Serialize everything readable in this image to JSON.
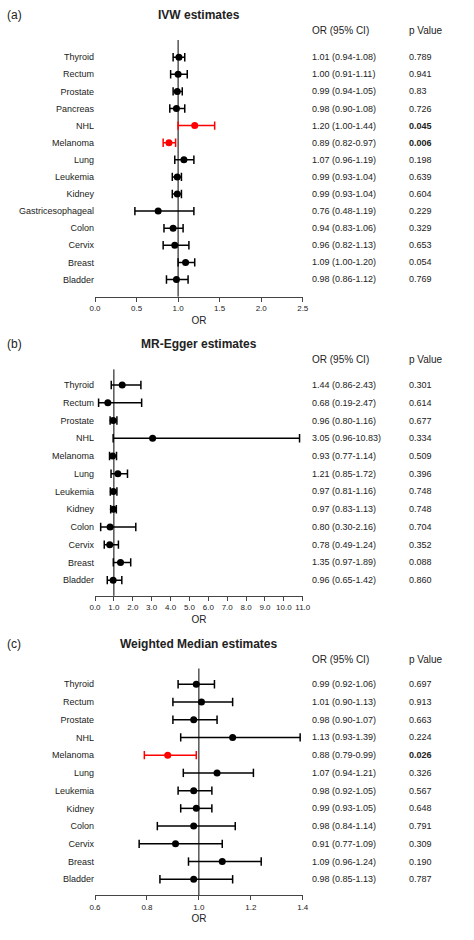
{
  "chart_data": [
    {
      "type": "forest",
      "label": "(a)",
      "title": "IVW estimates",
      "x_label": "OR",
      "categories": [
        "Thyroid",
        "Rectum",
        "Prostate",
        "Pancreas",
        "NHL",
        "Melanoma",
        "Lung",
        "Leukemia",
        "Kidney",
        "Gastricesophageal",
        "Colon",
        "Cervix",
        "Breast",
        "Bladder"
      ],
      "values": [
        1.01,
        1.0,
        0.99,
        0.98,
        1.2,
        0.89,
        1.07,
        0.99,
        0.99,
        0.76,
        0.94,
        0.96,
        1.09,
        0.98
      ],
      "ci_low": [
        0.94,
        0.91,
        0.94,
        0.9,
        1.0,
        0.82,
        0.96,
        0.93,
        0.93,
        0.48,
        0.83,
        0.82,
        1.0,
        0.86
      ],
      "ci_high": [
        1.08,
        1.11,
        1.05,
        1.08,
        1.44,
        0.97,
        1.19,
        1.04,
        1.04,
        1.19,
        1.06,
        1.13,
        1.2,
        1.12
      ],
      "value_labels": [
        "1.01 (0.94-1.08)",
        "1.00 (0.91-1.11)",
        "0.99 (0.94-1.05)",
        "0.98 (0.90-1.08)",
        "1.20 (1.00-1.44)",
        "0.89 (0.82-0.97)",
        "1.07 (0.96-1.19)",
        "0.99 (0.93-1.04)",
        "0.99 (0.93-1.04)",
        "0.76 (0.48-1.19)",
        "0.94 (0.83-1.06)",
        "0.96 (0.82-1.13)",
        "1.09 (1.00-1.20)",
        "0.98 (0.86-1.12)"
      ],
      "p_values": [
        "0.789",
        "0.941",
        "0.83",
        "0.726",
        "0.045",
        "0.006",
        "0.198",
        "0.639",
        "0.604",
        "0.229",
        "0.329",
        "0.653",
        "0.054",
        "0.769"
      ],
      "columns": [
        "OR (95% CI)",
        "p Value"
      ],
      "color": "black",
      "colors": [
        "black",
        "black",
        "black",
        "black",
        "red",
        "red",
        "black",
        "black",
        "black",
        "black",
        "black",
        "black",
        "black",
        "black"
      ],
      "reference_line": 1.0,
      "xlim": [
        0.0,
        2.5
      ],
      "xticks": [
        {
          "value": 0,
          "label": "0.0"
        },
        0.5,
        {
          "value": 1,
          "label": "1.0"
        },
        1.5,
        {
          "value": 2,
          "label": "2.0"
        },
        2.5
      ],
      "grid": false
    },
    {
      "type": "forest",
      "label": "(b)",
      "title": "MR-Egger estimates",
      "x_label": "OR",
      "categories": [
        "Thyroid",
        "Rectum",
        "Prostate",
        "NHL",
        "Melanoma",
        "Lung",
        "Leukemia",
        "Kidney",
        "Colon",
        "Cervix",
        "Breast",
        "Bladder"
      ],
      "values": [
        1.44,
        0.68,
        0.96,
        3.05,
        0.93,
        1.21,
        0.97,
        0.97,
        0.8,
        0.78,
        1.35,
        0.96
      ],
      "ci_low": [
        0.86,
        0.19,
        0.8,
        0.96,
        0.77,
        0.85,
        0.81,
        0.83,
        0.3,
        0.49,
        0.97,
        0.65
      ],
      "ci_high": [
        2.43,
        2.47,
        1.16,
        10.83,
        1.14,
        1.72,
        1.16,
        1.13,
        2.16,
        1.24,
        1.89,
        1.42
      ],
      "value_labels": [
        "1.44 (0.86-2.43)",
        "0.68 (0.19-2.47)",
        "0.96 (0.80-1.16)",
        "3.05 (0.96-10.83)",
        "0.93 (0.77-1.14)",
        "1.21 (0.85-1.72)",
        "0.97 (0.81-1.16)",
        "0.97 (0.83-1.13)",
        "0.80 (0.30-2.16)",
        "0.78 (0.49-1.24)",
        "1.35 (0.97-1.89)",
        "0.96 (0.65-1.42)"
      ],
      "p_values": [
        "0.301",
        "0.614",
        "0.677",
        "0.334",
        "0.509",
        "0.396",
        "0.748",
        "0.748",
        "0.704",
        "0.352",
        "0.088",
        "0.860"
      ],
      "columns": [
        "OR (95% CI)",
        "p Value"
      ],
      "color": "black",
      "colors": [
        "black",
        "black",
        "black",
        "black",
        "black",
        "black",
        "black",
        "black",
        "black",
        "black",
        "black",
        "black"
      ],
      "reference_line": 1.0,
      "xlim": [
        0.0,
        11.0
      ],
      "xticks": [
        {
          "value": 0,
          "label": "0.0"
        },
        {
          "value": 1,
          "label": "1.0"
        },
        {
          "value": 2,
          "label": "2.0"
        },
        {
          "value": 3,
          "label": "3.0"
        },
        {
          "value": 4,
          "label": "4.0"
        },
        {
          "value": 5,
          "label": "5.0"
        },
        {
          "value": 6,
          "label": "6.0"
        },
        {
          "value": 7,
          "label": "7.0"
        },
        {
          "value": 8,
          "label": "8.0"
        },
        {
          "value": 9,
          "label": "9.0"
        },
        {
          "value": 10,
          "label": "10.0"
        },
        {
          "value": 11,
          "label": "11.0"
        }
      ],
      "grid": false
    },
    {
      "type": "forest",
      "label": "(c)",
      "title": "Weighted Median estimates",
      "x_label": "OR",
      "categories": [
        "Thyroid",
        "Rectum",
        "Prostate",
        "NHL",
        "Melanoma",
        "Lung",
        "Leukemia",
        "Kidney",
        "Colon",
        "Cervix",
        "Breast",
        "Bladder"
      ],
      "values": [
        0.99,
        1.01,
        0.98,
        1.13,
        0.88,
        1.07,
        0.98,
        0.99,
        0.98,
        0.91,
        1.09,
        0.98
      ],
      "ci_low": [
        0.92,
        0.9,
        0.9,
        0.93,
        0.79,
        0.94,
        0.92,
        0.93,
        0.84,
        0.77,
        0.96,
        0.85
      ],
      "ci_high": [
        1.06,
        1.13,
        1.07,
        1.39,
        0.99,
        1.21,
        1.05,
        1.05,
        1.14,
        1.09,
        1.24,
        1.13
      ],
      "value_labels": [
        "0.99 (0.92-1.06)",
        "1.01 (0.90-1.13)",
        "0.98 (0.90-1.07)",
        "1.13 (0.93-1.39)",
        "0.88 (0.79-0.99)",
        "1.07 (0.94-1.21)",
        "0.98 (0.92-1.05)",
        "0.99 (0.93-1.05)",
        "0.98 (0.84-1.14)",
        "0.91 (0.77-1.09)",
        "1.09 (0.96-1.24)",
        "0.98 (0.85-1.13)"
      ],
      "p_values": [
        "0.697",
        "0.913",
        "0.663",
        "0.224",
        "0.026",
        "0.326",
        "0.567",
        "0.648",
        "0.791",
        "0.309",
        "0.190",
        "0.787"
      ],
      "columns": [
        "OR (95% CI)",
        "p Value"
      ],
      "color": "black",
      "colors": [
        "black",
        "black",
        "black",
        "black",
        "red",
        "black",
        "black",
        "black",
        "black",
        "black",
        "black",
        "black"
      ],
      "reference_line": 1.0,
      "xlim": [
        0.6,
        1.4
      ],
      "xticks": [
        0.6,
        0.8,
        {
          "value": 1,
          "label": "1.0"
        },
        1.2,
        1.4
      ],
      "grid": false
    }
  ]
}
